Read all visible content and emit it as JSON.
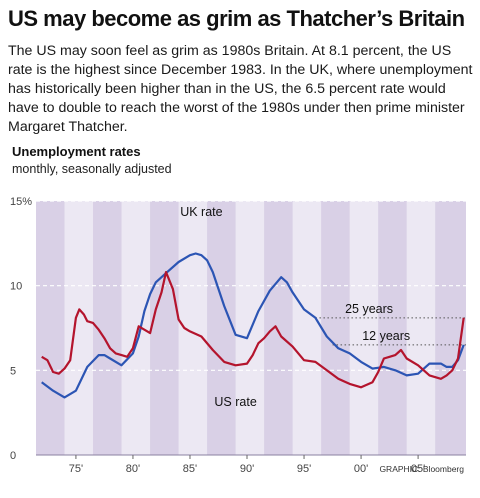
{
  "headline": "US may become as grim as Thatcher’s Britain",
  "intro": "The US may soon feel as grim as 1980s Britain. At 8.1 percent, the US rate is the highest since December 1983. In the UK, where unemployment has historically been higher than in the US, the 6.5 percent rate would have to double to reach the worst of the 1980s under then prime minister Margaret Thatcher.",
  "subhead": "Unemployment rates",
  "subnote": "monthly, seasonally adjusted",
  "credit": "GRAPHIC: Bloomberg",
  "colors": {
    "uk": "#2c55b4",
    "us": "#b4142d",
    "band": "#d9d0e6",
    "panel": "#ece8f3"
  },
  "chart_data": {
    "type": "line",
    "title": "Unemployment rates",
    "subtitle": "monthly, seasonally adjusted",
    "x_tick_labels": [
      "75'",
      "80'",
      "85'",
      "90'",
      "95'",
      "00'",
      "05'"
    ],
    "x_tick_values": [
      1975,
      1980,
      1985,
      1990,
      1995,
      2000,
      2005
    ],
    "y_tick_labels": [
      "0",
      "5",
      "10",
      "15%"
    ],
    "y_tick_values": [
      0,
      5,
      10,
      15
    ],
    "xlim": [
      1971.5,
      2009.2
    ],
    "ylim": [
      0,
      15
    ],
    "grid": true,
    "series": [
      {
        "name": "UK rate",
        "key": "uk",
        "points": [
          [
            1972.0,
            4.3
          ],
          [
            1973.0,
            3.8
          ],
          [
            1974.0,
            3.4
          ],
          [
            1975.0,
            3.8
          ],
          [
            1976.0,
            5.2
          ],
          [
            1977.0,
            5.9
          ],
          [
            1977.5,
            5.9
          ],
          [
            1978.0,
            5.7
          ],
          [
            1979.0,
            5.3
          ],
          [
            1980.0,
            6.0
          ],
          [
            1980.5,
            7.0
          ],
          [
            1981.0,
            8.5
          ],
          [
            1981.5,
            9.5
          ],
          [
            1982.0,
            10.2
          ],
          [
            1983.0,
            10.8
          ],
          [
            1984.0,
            11.4
          ],
          [
            1985.0,
            11.8
          ],
          [
            1985.5,
            11.9
          ],
          [
            1986.0,
            11.8
          ],
          [
            1986.5,
            11.5
          ],
          [
            1987.0,
            10.8
          ],
          [
            1988.0,
            8.8
          ],
          [
            1989.0,
            7.1
          ],
          [
            1990.0,
            6.9
          ],
          [
            1991.0,
            8.5
          ],
          [
            1992.0,
            9.7
          ],
          [
            1993.0,
            10.5
          ],
          [
            1993.5,
            10.2
          ],
          [
            1994.0,
            9.6
          ],
          [
            1995.0,
            8.6
          ],
          [
            1996.0,
            8.1
          ],
          [
            1997.0,
            7.0
          ],
          [
            1998.0,
            6.3
          ],
          [
            1999.0,
            6.0
          ],
          [
            2000.0,
            5.5
          ],
          [
            2001.0,
            5.1
          ],
          [
            2002.0,
            5.2
          ],
          [
            2003.0,
            5.0
          ],
          [
            2004.0,
            4.7
          ],
          [
            2005.0,
            4.8
          ],
          [
            2006.0,
            5.4
          ],
          [
            2007.0,
            5.4
          ],
          [
            2007.5,
            5.2
          ],
          [
            2008.0,
            5.2
          ],
          [
            2008.5,
            5.6
          ],
          [
            2009.0,
            6.5
          ]
        ]
      },
      {
        "name": "US rate",
        "key": "us",
        "points": [
          [
            1972.0,
            5.8
          ],
          [
            1972.5,
            5.6
          ],
          [
            1973.0,
            4.9
          ],
          [
            1973.5,
            4.8
          ],
          [
            1974.0,
            5.1
          ],
          [
            1974.5,
            5.6
          ],
          [
            1975.0,
            8.1
          ],
          [
            1975.3,
            8.6
          ],
          [
            1975.7,
            8.3
          ],
          [
            1976.0,
            7.9
          ],
          [
            1976.5,
            7.8
          ],
          [
            1977.0,
            7.4
          ],
          [
            1977.5,
            6.9
          ],
          [
            1978.0,
            6.3
          ],
          [
            1978.5,
            6.0
          ],
          [
            1979.0,
            5.9
          ],
          [
            1979.5,
            5.8
          ],
          [
            1980.0,
            6.3
          ],
          [
            1980.5,
            7.6
          ],
          [
            1981.0,
            7.4
          ],
          [
            1981.5,
            7.2
          ],
          [
            1982.0,
            8.6
          ],
          [
            1982.5,
            9.6
          ],
          [
            1982.9,
            10.8
          ],
          [
            1983.5,
            9.8
          ],
          [
            1984.0,
            8.0
          ],
          [
            1984.5,
            7.5
          ],
          [
            1985.0,
            7.3
          ],
          [
            1986.0,
            7.0
          ],
          [
            1987.0,
            6.2
          ],
          [
            1988.0,
            5.5
          ],
          [
            1989.0,
            5.3
          ],
          [
            1990.0,
            5.4
          ],
          [
            1990.5,
            5.9
          ],
          [
            1991.0,
            6.6
          ],
          [
            1991.5,
            6.9
          ],
          [
            1992.0,
            7.3
          ],
          [
            1992.5,
            7.6
          ],
          [
            1993.0,
            7.0
          ],
          [
            1994.0,
            6.4
          ],
          [
            1995.0,
            5.6
          ],
          [
            1996.0,
            5.5
          ],
          [
            1997.0,
            5.0
          ],
          [
            1998.0,
            4.5
          ],
          [
            1999.0,
            4.2
          ],
          [
            2000.0,
            4.0
          ],
          [
            2001.0,
            4.3
          ],
          [
            2001.5,
            4.9
          ],
          [
            2002.0,
            5.7
          ],
          [
            2002.5,
            5.8
          ],
          [
            2003.0,
            5.9
          ],
          [
            2003.5,
            6.2
          ],
          [
            2004.0,
            5.7
          ],
          [
            2005.0,
            5.3
          ],
          [
            2006.0,
            4.7
          ],
          [
            2007.0,
            4.5
          ],
          [
            2007.5,
            4.7
          ],
          [
            2008.0,
            5.0
          ],
          [
            2008.5,
            5.7
          ],
          [
            2009.0,
            8.1
          ]
        ]
      }
    ],
    "shaded_bands": [
      [
        1971.5,
        1974.0
      ],
      [
        1976.5,
        1979.0
      ],
      [
        1981.5,
        1984.0
      ],
      [
        1986.5,
        1989.0
      ],
      [
        1991.5,
        1994.0
      ],
      [
        1996.5,
        1999.0
      ],
      [
        2001.5,
        2004.0
      ],
      [
        2006.5,
        2009.2
      ]
    ],
    "series_labels": [
      {
        "key": "uk",
        "text": "UK rate",
        "at": [
          1986.0,
          14.1
        ]
      },
      {
        "key": "us",
        "text": "US rate",
        "at": [
          1989.0,
          2.9
        ]
      }
    ],
    "reference_lines": [
      {
        "text": "25 years",
        "y": 8.1,
        "from": 1996.0
      },
      {
        "text": "12 years",
        "y": 6.5,
        "from": 1997.5
      }
    ]
  }
}
